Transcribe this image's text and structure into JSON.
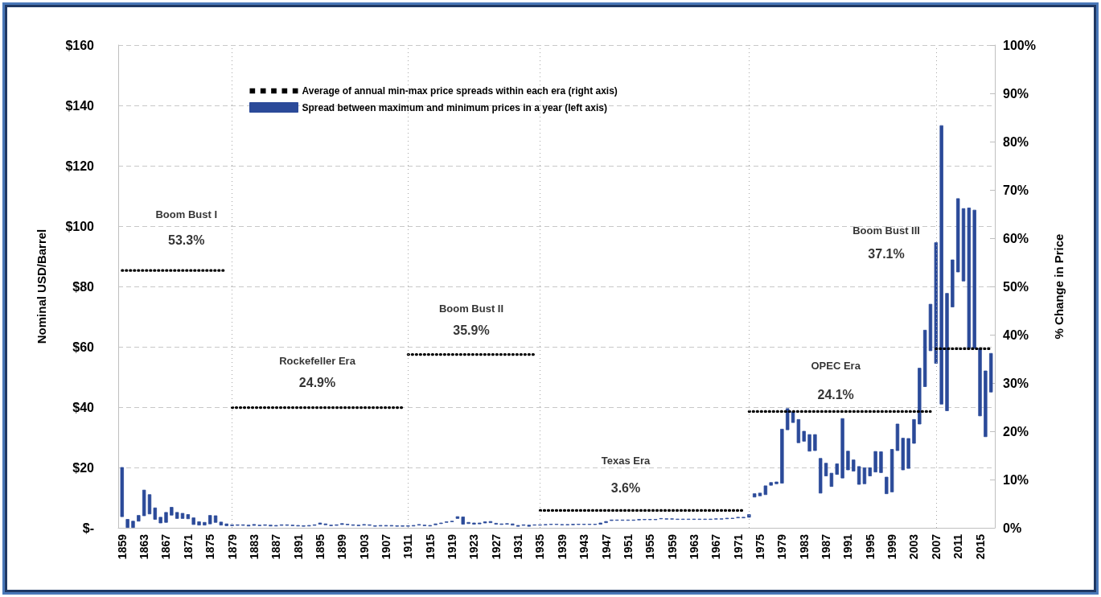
{
  "chart_data": {
    "type": "bar",
    "ylabel": "Nominal USD/Barrel",
    "y2label": "% Change in Price",
    "xlim": [
      1858.3,
      2017.7
    ],
    "xticks": [
      1859,
      1863,
      1867,
      1871,
      1875,
      1879,
      1883,
      1887,
      1891,
      1895,
      1899,
      1903,
      1907,
      1911,
      1915,
      1919,
      1923,
      1927,
      1931,
      1935,
      1939,
      1943,
      1947,
      1951,
      1955,
      1959,
      1963,
      1967,
      1971,
      1975,
      1979,
      1983,
      1987,
      1991,
      1995,
      1999,
      2003,
      2007,
      2011,
      2015
    ],
    "ylim": [
      0,
      160
    ],
    "yticks": [
      {
        "value": 0,
        "label": "$-"
      },
      {
        "value": 20,
        "label": "$20"
      },
      {
        "value": 40,
        "label": "$40"
      },
      {
        "value": 60,
        "label": "$60"
      },
      {
        "value": 80,
        "label": "$80"
      },
      {
        "value": 100,
        "label": "$100"
      },
      {
        "value": 120,
        "label": "$120"
      },
      {
        "value": 140,
        "label": "$140"
      },
      {
        "value": 160,
        "label": "$160"
      }
    ],
    "y2lim": [
      0,
      100
    ],
    "y2ticks": [
      {
        "value": 0,
        "label": "0%"
      },
      {
        "value": 10,
        "label": "10%"
      },
      {
        "value": 20,
        "label": "20%"
      },
      {
        "value": 30,
        "label": "30%"
      },
      {
        "value": 40,
        "label": "40%"
      },
      {
        "value": 50,
        "label": "50%"
      },
      {
        "value": 60,
        "label": "60%"
      },
      {
        "value": 70,
        "label": "70%"
      },
      {
        "value": 80,
        "label": "80%"
      },
      {
        "value": 90,
        "label": "90%"
      },
      {
        "value": 100,
        "label": "100%"
      }
    ],
    "grid": "y",
    "legend": "top left",
    "marker": "none",
    "ref_lines": [
      {
        "axis": "x",
        "value": 1879,
        "color": "#a6a6a6",
        "line_style": "dotted"
      },
      {
        "axis": "x",
        "value": 1911,
        "color": "#a6a6a6",
        "line_style": "dotted"
      },
      {
        "axis": "x",
        "value": 1935,
        "color": "#a6a6a6",
        "line_style": "dotted"
      },
      {
        "axis": "x",
        "value": 1973,
        "color": "#a6a6a6",
        "line_style": "dotted"
      },
      {
        "axis": "x",
        "value": 2007,
        "color": "#a6a6a6",
        "line_style": "dotted"
      }
    ],
    "annotations": [
      "Boom Bust I",
      "53.3%",
      "Rockefeller Era",
      "24.9%",
      "Boom Bust II",
      "35.9%",
      "Texas Era",
      "3.6%",
      "OPEC Era",
      "24.1%",
      "Boom Bust III",
      "37.1%"
    ],
    "series": [
      {
        "name": "Average of annual min-max price spreads within each era (right axis)",
        "type": "line",
        "axis": "y2",
        "color": "#000000",
        "line_style": "dotted",
        "x": [
          1859,
          1878
        ],
        "values": [
          53.3,
          53.3
        ]
      },
      {
        "type": "line",
        "axis": "y2",
        "color": "#000000",
        "line_style": "dotted",
        "x": [
          1879,
          1910
        ],
        "values": [
          24.9,
          24.9
        ]
      },
      {
        "type": "line",
        "axis": "y2",
        "color": "#000000",
        "line_style": "dotted",
        "x": [
          1911,
          1934
        ],
        "values": [
          35.9,
          35.9
        ]
      },
      {
        "type": "line",
        "axis": "y2",
        "color": "#000000",
        "line_style": "dotted",
        "x": [
          1935,
          1972
        ],
        "values": [
          3.6,
          3.6
        ]
      },
      {
        "type": "line",
        "axis": "y2",
        "color": "#000000",
        "line_style": "dotted",
        "x": [
          1973,
          2006
        ],
        "values": [
          24.1,
          24.1
        ]
      },
      {
        "type": "line",
        "axis": "y2",
        "color": "#000000",
        "line_style": "dotted",
        "x": [
          2007,
          2017
        ],
        "values": [
          37.1,
          37.1
        ]
      },
      {
        "name": "Spread between maximum and minimum prices in a year (left axis)",
        "axis": "y",
        "color": "#2b4a99",
        "x": [
          1859,
          1860,
          1861,
          1862,
          1863,
          1864,
          1865,
          1866,
          1867,
          1868,
          1869,
          1870,
          1871,
          1872,
          1873,
          1874,
          1875,
          1876,
          1877,
          1878,
          1879,
          1880,
          1881,
          1882,
          1883,
          1884,
          1885,
          1886,
          1887,
          1888,
          1889,
          1890,
          1891,
          1892,
          1893,
          1894,
          1895,
          1896,
          1897,
          1898,
          1899,
          1900,
          1901,
          1902,
          1903,
          1904,
          1905,
          1906,
          1907,
          1908,
          1909,
          1910,
          1911,
          1912,
          1913,
          1914,
          1915,
          1916,
          1917,
          1918,
          1919,
          1920,
          1921,
          1922,
          1923,
          1924,
          1925,
          1926,
          1927,
          1928,
          1929,
          1930,
          1931,
          1932,
          1933,
          1934,
          1935,
          1936,
          1937,
          1938,
          1939,
          1940,
          1941,
          1942,
          1943,
          1944,
          1945,
          1946,
          1947,
          1948,
          1949,
          1950,
          1951,
          1952,
          1953,
          1954,
          1955,
          1956,
          1957,
          1958,
          1959,
          1960,
          1961,
          1962,
          1963,
          1964,
          1965,
          1966,
          1967,
          1968,
          1969,
          1970,
          1971,
          1972,
          1973,
          1974,
          1975,
          1976,
          1977,
          1978,
          1979,
          1980,
          1981,
          1982,
          1983,
          1984,
          1985,
          1986,
          1987,
          1988,
          1989,
          1990,
          1991,
          1992,
          1993,
          1994,
          1995,
          1996,
          1997,
          1998,
          1999,
          2000,
          2001,
          2002,
          2003,
          2004,
          2005,
          2006,
          2007,
          2008,
          2009,
          2010,
          2011,
          2012,
          2013,
          2014,
          2015,
          2016,
          2017
        ],
        "base": [
          3.7,
          0.1,
          0.1,
          2.2,
          4.0,
          4.6,
          2.8,
          1.6,
          1.8,
          4.2,
          3.1,
          3.1,
          3.0,
          1.1,
          0.9,
          0.9,
          1.3,
          1.8,
          0.9,
          0.7,
          0.7,
          0.8,
          0.8,
          0.6,
          0.8,
          0.7,
          0.8,
          0.6,
          0.6,
          0.8,
          0.8,
          0.7,
          0.6,
          0.5,
          0.6,
          0.8,
          1.2,
          1.0,
          0.7,
          0.8,
          1.1,
          1.0,
          0.8,
          0.7,
          0.9,
          0.8,
          0.5,
          0.6,
          0.6,
          0.6,
          0.5,
          0.5,
          0.5,
          0.6,
          0.9,
          0.7,
          0.6,
          1.0,
          1.4,
          1.8,
          2.0,
          3.1,
          1.2,
          1.4,
          1.2,
          1.3,
          1.6,
          1.7,
          1.2,
          1.1,
          1.2,
          0.9,
          0.5,
          0.8,
          0.5,
          0.9,
          0.9,
          1.0,
          1.1,
          1.1,
          1.0,
          1.0,
          1.0,
          1.1,
          1.1,
          1.1,
          1.1,
          1.2,
          1.7,
          2.4,
          2.5,
          2.5,
          2.5,
          2.5,
          2.6,
          2.7,
          2.7,
          2.7,
          3.0,
          2.9,
          2.9,
          2.8,
          2.8,
          2.8,
          2.8,
          2.8,
          2.8,
          2.8,
          2.9,
          2.9,
          3.0,
          3.1,
          3.3,
          3.3,
          3.5,
          10.2,
          10.6,
          11.0,
          14.1,
          14.6,
          14.8,
          32.5,
          34.9,
          28.2,
          28.7,
          25.4,
          25.6,
          11.5,
          17.2,
          13.7,
          17.7,
          16.5,
          19.2,
          18.8,
          14.4,
          14.6,
          17.2,
          18.5,
          18.3,
          11.3,
          11.9,
          25.6,
          19.2,
          19.7,
          28.0,
          34.4,
          46.8,
          58.7,
          54.5,
          41.0,
          38.8,
          73.2,
          84.8,
          81.8,
          59.5,
          59.5,
          37.1,
          30.2,
          45.0
        ],
        "values": [
          16.3,
          2.7,
          2.1,
          1.9,
          8.5,
          6.4,
          3.8,
          1.9,
          3.3,
          2.6,
          2.0,
          1.7,
          1.4,
          2.2,
          1.1,
          0.9,
          2.8,
          2.2,
          1.0,
          0.6,
          0.3,
          0.2,
          0.2,
          0.3,
          0.3,
          0.2,
          0.2,
          0.3,
          0.2,
          0.2,
          0.2,
          0.2,
          0.2,
          0.2,
          0.2,
          0.2,
          0.4,
          0.3,
          0.2,
          0.2,
          0.3,
          0.2,
          0.2,
          0.2,
          0.2,
          0.2,
          0.2,
          0.2,
          0.2,
          0.2,
          0.2,
          0.2,
          0.2,
          0.2,
          0.2,
          0.2,
          0.2,
          0.3,
          0.2,
          0.2,
          0.2,
          0.6,
          2.4,
          0.4,
          0.4,
          0.3,
          0.4,
          0.4,
          0.3,
          0.2,
          0.2,
          0.4,
          0.3,
          0.2,
          0.4,
          0.1,
          0.1,
          0.1,
          0.1,
          0.1,
          0.1,
          0.1,
          0.2,
          0.1,
          0.1,
          0.1,
          0.1,
          0.4,
          0.4,
          0.2,
          0.1,
          0.1,
          0.1,
          0.1,
          0.2,
          0.1,
          0.1,
          0.1,
          0.1,
          0.1,
          0.1,
          0.1,
          0.1,
          0.1,
          0.1,
          0.1,
          0.1,
          0.1,
          0.1,
          0.1,
          0.2,
          0.1,
          0.2,
          0.2,
          0.9,
          1.1,
          0.9,
          2.9,
          0.9,
          0.6,
          17.9,
          7.0,
          3.5,
          7.7,
          3.3,
          5.5,
          5.3,
          11.5,
          4.2,
          4.4,
          3.5,
          19.7,
          6.2,
          3.7,
          5.9,
          5.3,
          2.7,
          6.8,
          6.9,
          5.5,
          14.1,
          8.8,
          10.5,
          9.9,
          7.9,
          18.5,
          18.7,
          15.4,
          40.0,
          92.3,
          38.9,
          15.6,
          24.3,
          24.0,
          46.5,
          45.8,
          22.4,
          21.8,
          12.8
        ]
      }
    ]
  }
}
